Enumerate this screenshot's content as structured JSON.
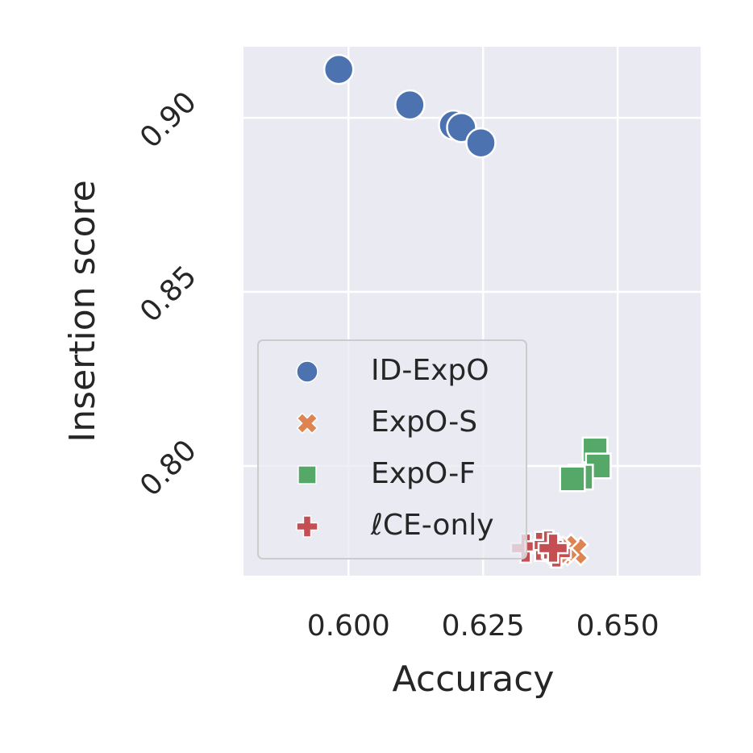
{
  "chart_data": {
    "type": "scatter",
    "xlabel": "Accuracy",
    "ylabel": "Insertion score",
    "xlim": [
      0.5805,
      0.6654
    ],
    "ylim": [
      0.7685,
      0.9204
    ],
    "xticks": [
      {
        "value": 0.6,
        "label": "0.600"
      },
      {
        "value": 0.625,
        "label": "0.625"
      },
      {
        "value": 0.65,
        "label": "0.650"
      }
    ],
    "yticks": [
      {
        "value": 0.8,
        "label": "0.80"
      },
      {
        "value": 0.85,
        "label": "0.85"
      },
      {
        "value": 0.9,
        "label": "0.90"
      }
    ],
    "grid": true,
    "legend": "lower left",
    "series": [
      {
        "name": "ID-ExpO",
        "color": "#4c72b0",
        "marker": "circle",
        "x": [
          0.5982,
          0.6114,
          0.6195,
          0.621,
          0.6246
        ],
        "values": [
          0.9139,
          0.9037,
          0.8979,
          0.8972,
          0.8928
        ]
      },
      {
        "name": "ExpO-S",
        "color": "#dd8452",
        "marker": "x",
        "x": [
          0.6419,
          0.6401,
          0.6386
        ],
        "values": [
          0.7755,
          0.7764,
          0.7757
        ]
      },
      {
        "name": "ExpO-F",
        "color": "#55a868",
        "marker": "square",
        "x": [
          0.6458,
          0.6464,
          0.6431,
          0.6416
        ],
        "values": [
          0.8046,
          0.8,
          0.7968,
          0.7963
        ]
      },
      {
        "name": "ℓCE-only",
        "color": "#c44e52",
        "marker": "plus",
        "x": [
          0.6329,
          0.6356,
          0.6386,
          0.6371,
          0.638
        ],
        "values": [
          0.7764,
          0.7769,
          0.775,
          0.7773,
          0.7764
        ]
      }
    ]
  }
}
